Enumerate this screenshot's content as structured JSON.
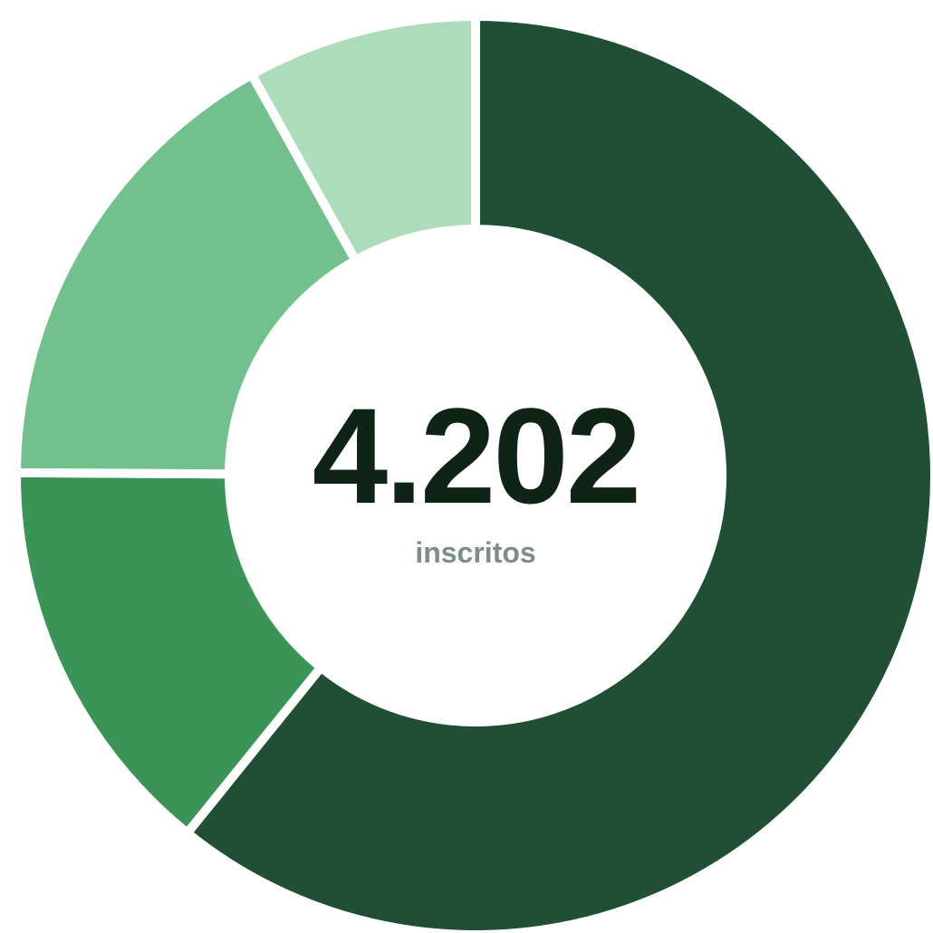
{
  "chart_data": {
    "type": "pie",
    "variant": "donut",
    "start_angle_deg": 0,
    "direction": "clockwise",
    "slices": [
      {
        "value": 60.8,
        "color": "#214f35"
      },
      {
        "value": 14.3,
        "color": "#3a9457"
      },
      {
        "value": 16.8,
        "color": "#72c08d"
      },
      {
        "value": 8.1,
        "color": "#acdcb9"
      }
    ],
    "center": {
      "value": "4.202",
      "label": "inscritos",
      "value_color": "#102317",
      "label_color": "#7d8f84"
    },
    "legend": "none",
    "title": ""
  }
}
